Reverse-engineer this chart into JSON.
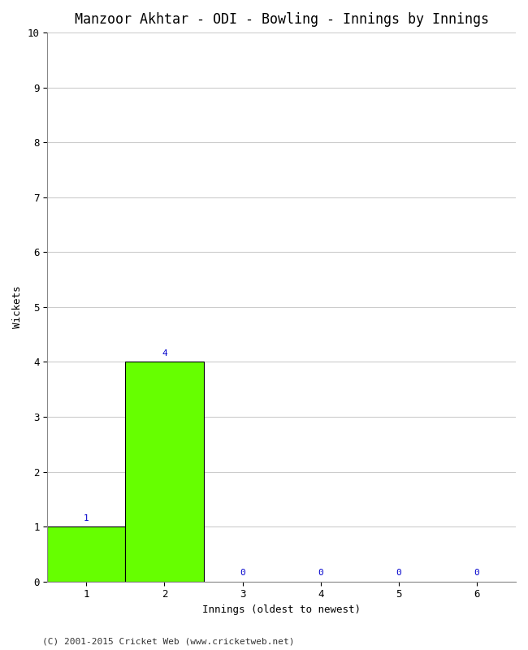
{
  "title": "Manzoor Akhtar - ODI - Bowling - Innings by Innings",
  "xlabel": "Innings (oldest to newest)",
  "ylabel": "Wickets",
  "categories": [
    1,
    2,
    3,
    4,
    5,
    6
  ],
  "values": [
    1,
    4,
    0,
    0,
    0,
    0
  ],
  "bar_color": "#66ff00",
  "bar_edge_color": "#000000",
  "label_color": "#0000cc",
  "ylim": [
    0,
    10
  ],
  "yticks": [
    0,
    1,
    2,
    3,
    4,
    5,
    6,
    7,
    8,
    9,
    10
  ],
  "xticks": [
    1,
    2,
    3,
    4,
    5,
    6
  ],
  "background_color": "#ffffff",
  "grid_color": "#cccccc",
  "footer": "(C) 2001-2015 Cricket Web (www.cricketweb.net)",
  "title_fontsize": 12,
  "axis_label_fontsize": 9,
  "tick_fontsize": 9,
  "bar_label_fontsize": 8,
  "footer_fontsize": 8
}
